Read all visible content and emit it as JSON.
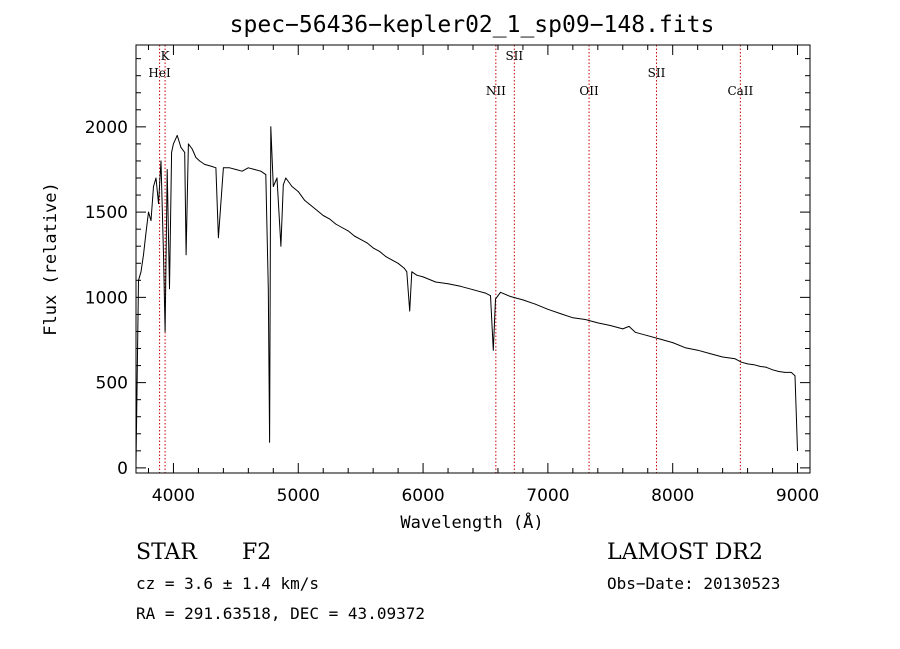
{
  "chart_data": {
    "type": "line",
    "title": "spec−56436−kepler02_1_sp09−148.fits",
    "xlabel": "Wavelength (Å)",
    "ylabel": "Flux (relative)",
    "xlim": [
      3700,
      9100
    ],
    "ylim": [
      -30,
      2480
    ],
    "x_ticks": [
      4000,
      5000,
      6000,
      7000,
      8000,
      9000
    ],
    "y_ticks": [
      0,
      500,
      1000,
      1500,
      2000
    ],
    "grid": false,
    "line_color": "#000000",
    "marker_color": "#cc0000",
    "series": [
      {
        "x": [
          3700,
          3720,
          3740,
          3760,
          3780,
          3800,
          3820,
          3840,
          3860,
          3880,
          3900,
          3920,
          3933,
          3950,
          3968,
          3985,
          4000,
          4030,
          4060,
          4090,
          4101,
          4120,
          4150,
          4180,
          4210,
          4250,
          4300,
          4340,
          4360,
          4400,
          4450,
          4500,
          4550,
          4600,
          4650,
          4700,
          4740,
          4760,
          4770,
          4780,
          4800,
          4830,
          4861,
          4880,
          4900,
          4950,
          5000,
          5050,
          5100,
          5150,
          5200,
          5250,
          5300,
          5350,
          5400,
          5450,
          5500,
          5550,
          5600,
          5650,
          5700,
          5750,
          5800,
          5850,
          5870,
          5893,
          5910,
          5950,
          6000,
          6100,
          6200,
          6300,
          6400,
          6500,
          6540,
          6563,
          6580,
          6620,
          6700,
          6800,
          6900,
          7000,
          7100,
          7200,
          7300,
          7400,
          7500,
          7600,
          7650,
          7700,
          7800,
          7900,
          8000,
          8100,
          8200,
          8300,
          8400,
          8450,
          8500,
          8550,
          8600,
          8650,
          8700,
          8750,
          8800,
          8850,
          8900,
          8950,
          8980,
          9000
        ],
        "y": [
          20,
          1100,
          1150,
          1250,
          1380,
          1500,
          1450,
          1650,
          1700,
          1550,
          1800,
          1250,
          800,
          1750,
          1050,
          1850,
          1900,
          1950,
          1880,
          1850,
          1250,
          1900,
          1870,
          1820,
          1800,
          1780,
          1770,
          1760,
          1350,
          1760,
          1760,
          1750,
          1740,
          1760,
          1750,
          1740,
          1720,
          1050,
          150,
          2000,
          1650,
          1700,
          1300,
          1660,
          1700,
          1650,
          1620,
          1570,
          1540,
          1510,
          1480,
          1460,
          1430,
          1410,
          1390,
          1360,
          1340,
          1320,
          1290,
          1270,
          1240,
          1220,
          1200,
          1170,
          1150,
          920,
          1150,
          1130,
          1120,
          1090,
          1080,
          1065,
          1045,
          1025,
          1010,
          690,
          990,
          1030,
          1005,
          985,
          960,
          930,
          905,
          880,
          870,
          850,
          835,
          815,
          830,
          795,
          775,
          755,
          735,
          705,
          690,
          670,
          650,
          645,
          640,
          620,
          610,
          605,
          595,
          590,
          575,
          565,
          560,
          560,
          540,
          100
        ]
      }
    ],
    "annotations": [
      {
        "label": "K",
        "x": 3933,
        "row": 0
      },
      {
        "label": "HeI",
        "x": 3889,
        "row": 1
      },
      {
        "label": "SII",
        "x": 6731,
        "row": 0
      },
      {
        "label": "NII",
        "x": 6583,
        "row": 2
      },
      {
        "label": "OII",
        "x": 7330,
        "row": 2
      },
      {
        "label": "SII",
        "x": 7870,
        "row": 1
      },
      {
        "label": "CaII",
        "x": 8542,
        "row": 2
      }
    ]
  },
  "info": {
    "object_type": "STAR",
    "subclass": "F2",
    "survey": "LAMOST DR2",
    "cz": "cz = 3.6 ± 1.4 km/s",
    "obs_date": "Obs−Date: 20130523",
    "coords": "RA = 291.63518, DEC =  43.09372"
  }
}
